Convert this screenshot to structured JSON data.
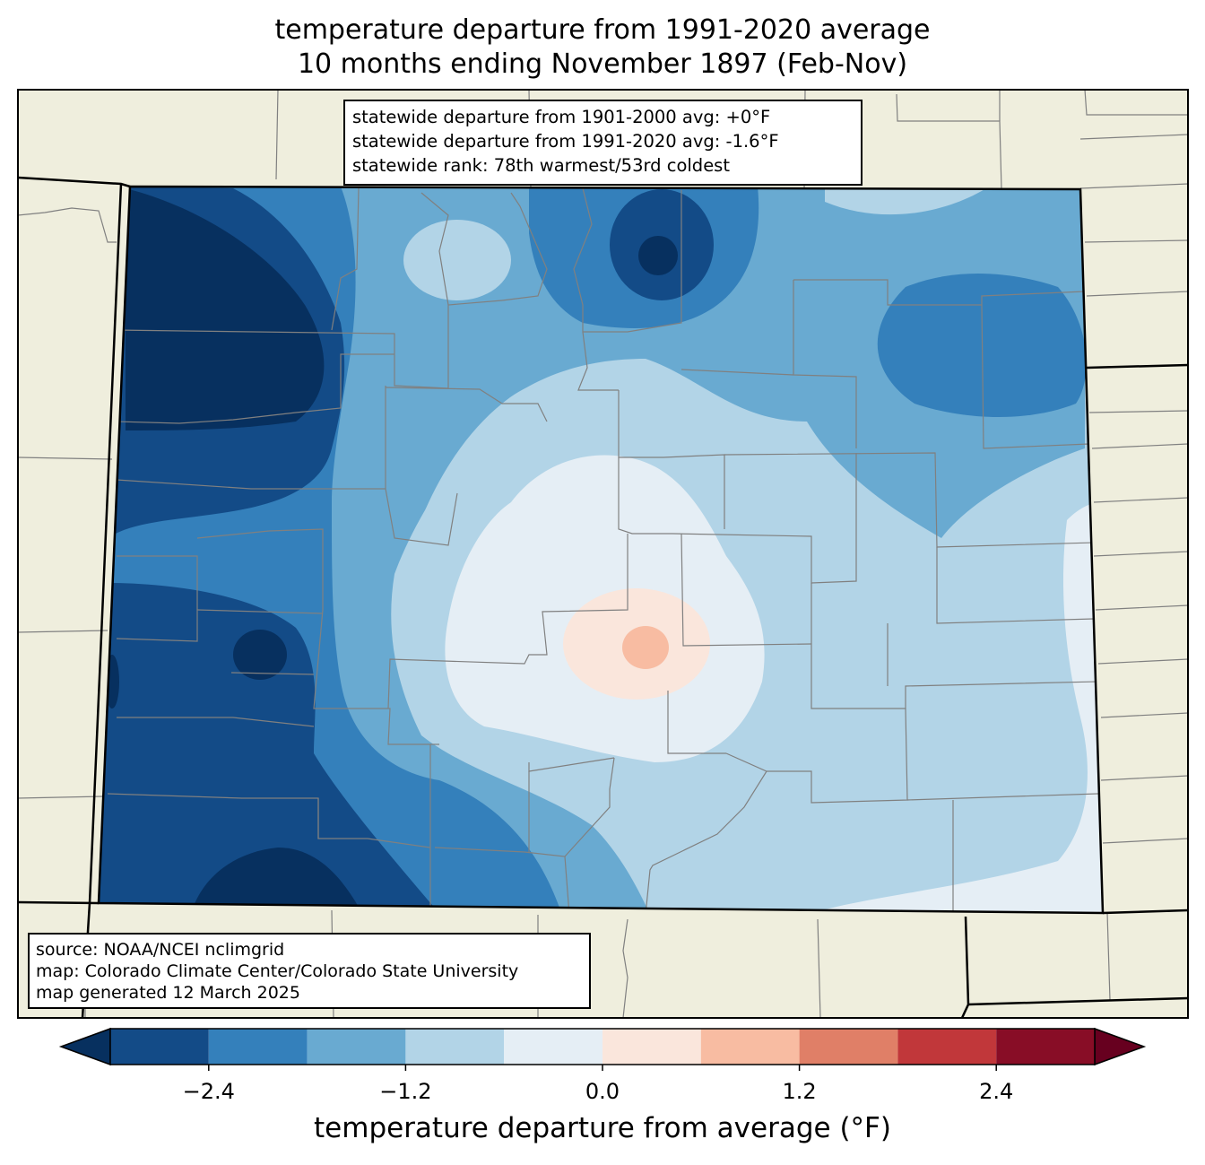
{
  "title": {
    "line1": "temperature departure from 1991-2020 average",
    "line2": "10 months ending November 1897 (Feb-Nov)"
  },
  "stats_box": {
    "line1": "statewide departure from 1901-2000 avg: +0°F",
    "line2": "statewide departure from 1991-2020 avg: -1.6°F",
    "line3": "statewide rank: 78th warmest/53rd coldest"
  },
  "source_box": {
    "line1": "source: NOAA/NCEI nclimgrid",
    "line2": "map: Colorado Climate Center/Colorado State University",
    "line3": "map generated 12 March 2025"
  },
  "colorbar": {
    "label": "temperature departure from average (°F)",
    "ticks": [
      "−2.4",
      "−1.2",
      "0.0",
      "1.2",
      "2.4"
    ],
    "tick_values": [
      -2.4,
      -1.2,
      0.0,
      1.2,
      2.4
    ],
    "bins": [
      {
        "min": -3.0,
        "max": -2.4,
        "color": "#134b87"
      },
      {
        "min": -2.4,
        "max": -1.8,
        "color": "#3480bb"
      },
      {
        "min": -1.8,
        "max": -1.2,
        "color": "#69aad1"
      },
      {
        "min": -1.2,
        "max": -0.6,
        "color": "#b2d4e7"
      },
      {
        "min": -0.6,
        "max": 0.0,
        "color": "#e5eef5"
      },
      {
        "min": 0.0,
        "max": 0.6,
        "color": "#fae6dc"
      },
      {
        "min": 0.6,
        "max": 1.2,
        "color": "#f8bca2"
      },
      {
        "min": 1.2,
        "max": 1.8,
        "color": "#e07f67"
      },
      {
        "min": 1.8,
        "max": 2.4,
        "color": "#c1373a"
      },
      {
        "min": 2.4,
        "max": 3.0,
        "color": "#880d26"
      }
    ],
    "under_color": "#07305f",
    "over_color": "#67001f"
  },
  "colors": {
    "land": "#efeedd",
    "state_border": "#000000",
    "county_border": "#808080"
  }
}
